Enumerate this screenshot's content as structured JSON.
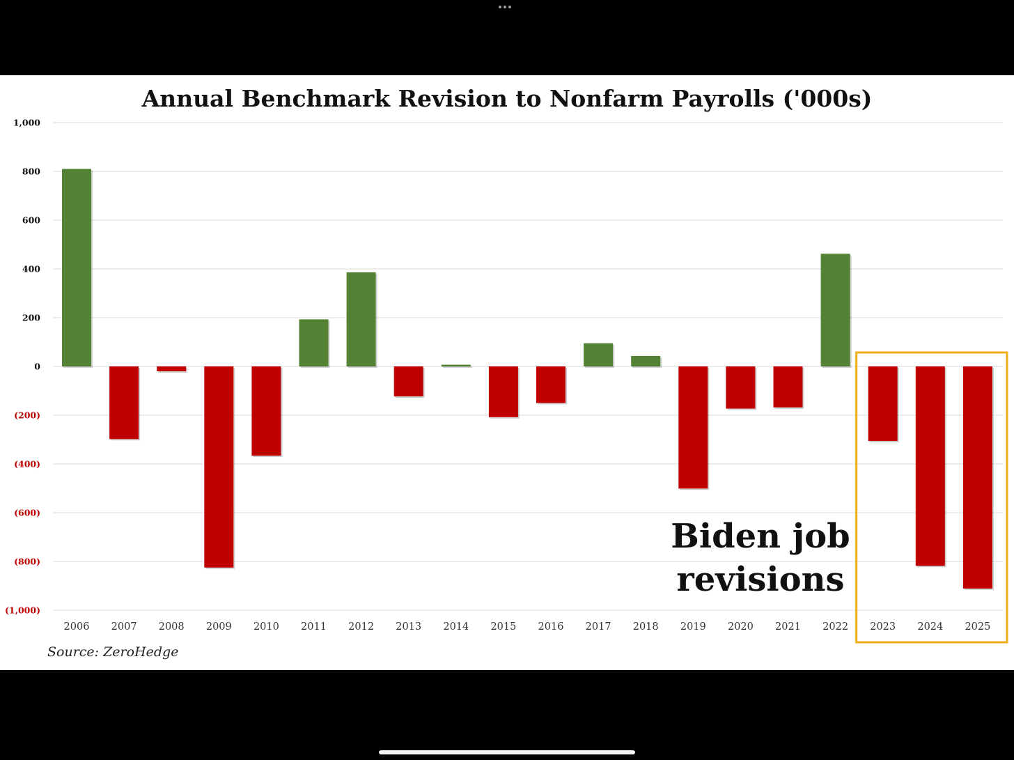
{
  "chart_data": {
    "type": "bar",
    "title": "Annual Benchmark Revision to Nonfarm Payrolls ('000s)",
    "xlabel": "",
    "ylabel": "",
    "categories": [
      "2006",
      "2007",
      "2008",
      "2009",
      "2010",
      "2011",
      "2012",
      "2013",
      "2014",
      "2015",
      "2016",
      "2017",
      "2018",
      "2019",
      "2020",
      "2021",
      "2022",
      "2023",
      "2024",
      "2025"
    ],
    "values": [
      810,
      -298,
      -20,
      -825,
      -366,
      193,
      386,
      -123,
      7,
      -208,
      -150,
      95,
      43,
      -501,
      -173,
      -168,
      462,
      -306,
      -818,
      -911
    ],
    "ylim": [
      -1000,
      1000
    ],
    "yticks": [
      {
        "value": 1000,
        "label": "1,000"
      },
      {
        "value": 800,
        "label": "800"
      },
      {
        "value": 600,
        "label": "600"
      },
      {
        "value": 400,
        "label": "400"
      },
      {
        "value": 200,
        "label": "200"
      },
      {
        "value": 0,
        "label": "0"
      },
      {
        "value": -200,
        "label": "(200)"
      },
      {
        "value": -400,
        "label": "(400)"
      },
      {
        "value": -600,
        "label": "(600)"
      },
      {
        "value": -800,
        "label": "(800)"
      },
      {
        "value": -1000,
        "label": "(1,000)"
      }
    ],
    "grid": true,
    "legend": "none",
    "colors": {
      "positive": "#548235",
      "negative": "#c00000",
      "negative_tick_label": "#c00000",
      "positive_tick_label": "#111111",
      "highlight_box": "#f0ad1c"
    },
    "annotation": {
      "line1": "Biden job",
      "line2": "revisions",
      "highlighted_categories": [
        "2023",
        "2024",
        "2025"
      ]
    },
    "source": "Source: ZeroHedge"
  },
  "device": {
    "top_icon": "more-dots-icon",
    "bottom_icon": "home-indicator-icon"
  }
}
